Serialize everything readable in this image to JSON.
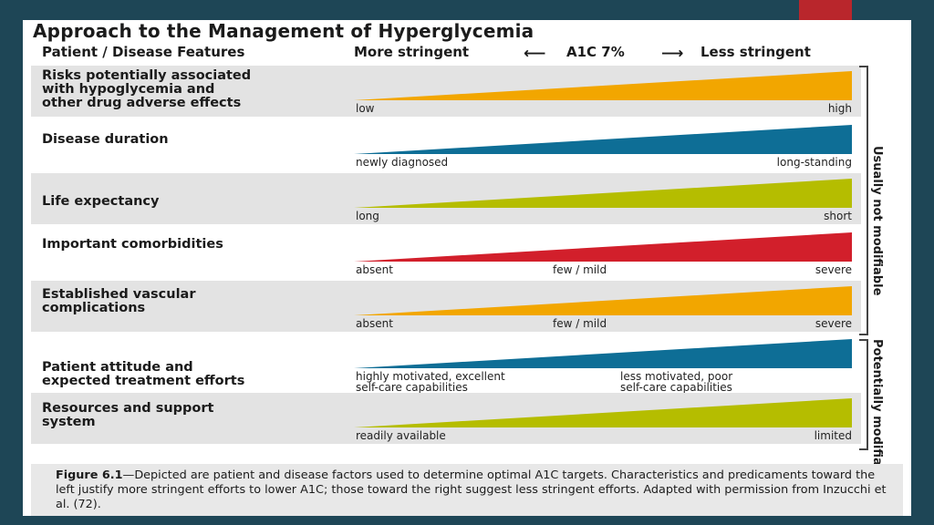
{
  "title": "Approach to the Management of Hyperglycemia",
  "header": {
    "left": "Patient / Disease Features",
    "more": "More stringent",
    "center": "A1C 7%",
    "less": "Less stringent"
  },
  "rows": [
    {
      "label": "Risks potentially associated\nwith hypoglycemia and\nother drug adverse effects",
      "left": "low",
      "middle": "",
      "right": "high",
      "color": "#f2a600"
    },
    {
      "label": "Disease duration",
      "left": "newly diagnosed",
      "middle": "",
      "right": "long-standing",
      "color": "#0e6e96"
    },
    {
      "label": "Life expectancy",
      "left": "long",
      "middle": "",
      "right": "short",
      "color": "#b5bd00"
    },
    {
      "label": "Important comorbidities",
      "left": "absent",
      "middle": "few / mild",
      "right": "severe",
      "color": "#d21f2b"
    },
    {
      "label": "Established vascular\ncomplications",
      "left": "absent",
      "middle": "few / mild",
      "right": "severe",
      "color": "#f2a600"
    },
    {
      "label": "Patient attitude and\nexpected treatment efforts",
      "left": "highly motivated, excellent\nself-care capabilities",
      "middle": "less motivated, poor\nself-care capabilities",
      "right": "",
      "color": "#0e6e96"
    },
    {
      "label": "Resources and support\nsystem",
      "left": "readily available",
      "middle": "",
      "right": "limited",
      "color": "#b5bd00"
    }
  ],
  "side": {
    "top": "Usually not modifiable",
    "bottom": "Potentially modifiable"
  },
  "caption": {
    "figure": "Figure 6.1",
    "text": "—Depicted are patient and disease factors used to determine optimal A1C targets. Characteristics and predicaments toward the left justify more stringent efforts to lower A1C; those toward the right suggest less stringent efforts. Adapted with permission from Inzucchi et al. (72)."
  }
}
